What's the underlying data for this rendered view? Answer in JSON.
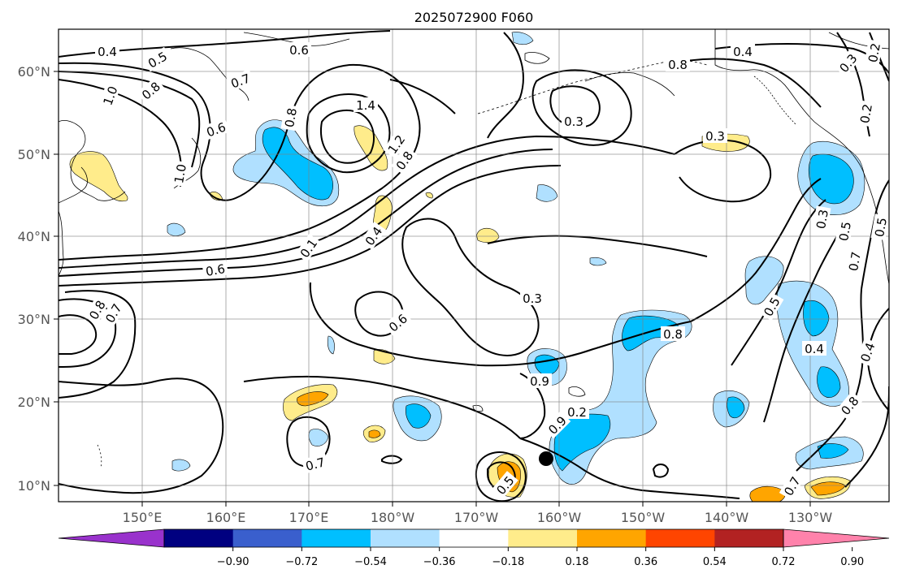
{
  "title": "2025072900 F060",
  "map": {
    "lon_ticks": [
      "150°E",
      "160°E",
      "170°E",
      "180°W",
      "170°W",
      "160°W",
      "150°W",
      "140°W",
      "130°W"
    ],
    "lat_ticks": [
      "60°N",
      "50°N",
      "40°N",
      "30°N",
      "20°N",
      "10°N"
    ],
    "contour_labels": [
      "0.4",
      "0.5",
      "0.6",
      "0.7",
      "0.8",
      "1.0",
      "0.6",
      "0.8",
      "1.4",
      "1.2",
      "0.8",
      "1.0",
      "0.1",
      "0.4",
      "0.6",
      "0.8",
      "0.7",
      "0.8",
      "0.4",
      "0.3",
      "0.3",
      "0.3",
      "0.2",
      "0.2",
      "0.3",
      "0.5",
      "0.5",
      "0.7",
      "0.5",
      "0.4",
      "0.6",
      "0.3",
      "0.9",
      "0.8",
      "0.9",
      "0.7",
      "0.5",
      "0.8",
      "0.4",
      "0.7",
      "0.2"
    ],
    "marker": "black-dot"
  },
  "colorbar": {
    "ticks": [
      "−0.90",
      "−0.72",
      "−0.54",
      "−0.36",
      "−0.18",
      "0.18",
      "0.36",
      "0.54",
      "0.72",
      "0.90"
    ],
    "colors": [
      "#9932cc",
      "#000080",
      "#3a5fcd",
      "#00bfff",
      "#b0e0ff",
      "#ffffff",
      "#ffec8b",
      "#ffa500",
      "#ff4500",
      "#b22222",
      "#ff82ab"
    ]
  },
  "colors": {
    "contour": "#000000",
    "coast": "#000000",
    "grid": "#808080"
  }
}
